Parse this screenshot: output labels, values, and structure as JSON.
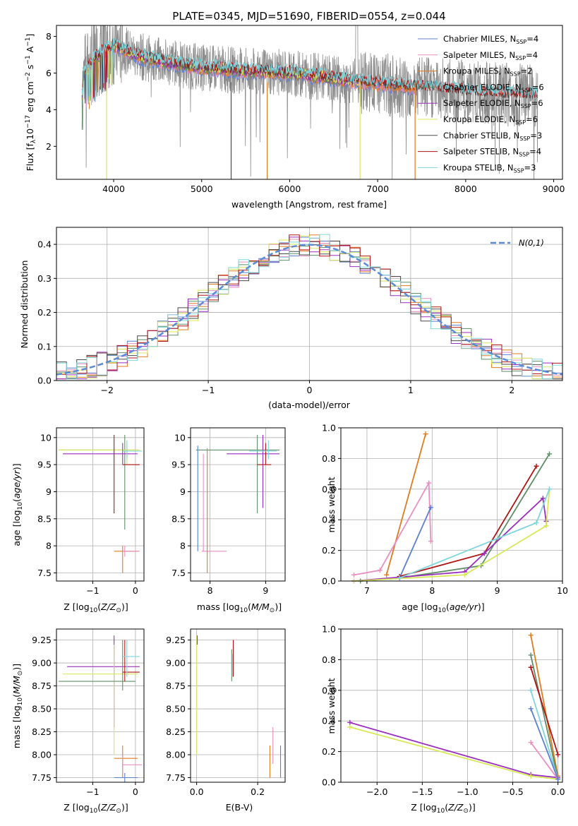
{
  "colors": {
    "chabrier_miles": "#5b7fd1",
    "salpeter_miles": "#e88fc0",
    "kroupa_miles": "#e07b20",
    "chabrier_elodie": "#5f8f68",
    "salpeter_elodie": "#9a2fbf",
    "kroupa_elodie": "#d8e85a",
    "chabrier_stelib": "#4a4a4a",
    "salpeter_stelib": "#b01414",
    "kroupa_stelib": "#7ed6dc",
    "gauss": "#5b8ad6",
    "observed": "#8c8c8c"
  },
  "chart_data": [
    {
      "type": "line",
      "title": "PLATE=0345, MJD=51690, FIBERID=0554, z=0.044",
      "xlabel": "wavelength [Angstrom, rest frame]",
      "ylabel": "Flux [fλ10⁻¹⁷ erg cm⁻² s⁻¹ A⁻¹]",
      "xlim": [
        3350,
        9100
      ],
      "ylim": [
        0.2,
        8.6
      ],
      "xticks": [
        4000,
        5000,
        6000,
        7000,
        8000,
        9000
      ],
      "yticks": [
        2,
        4,
        6,
        8
      ],
      "legend_position": "top-right",
      "series": [
        {
          "name": "Chabrier MILES, N_SSP=4",
          "key": "chabrier_miles"
        },
        {
          "name": "Salpeter MILES, N_SSP=4",
          "key": "salpeter_miles"
        },
        {
          "name": "Kroupa MILES, N_SSP=2",
          "key": "kroupa_miles"
        },
        {
          "name": "Chabrier ELODIE, N_SSP=6",
          "key": "chabrier_elodie"
        },
        {
          "name": "Salpeter ELODIE, N_SSP=6",
          "key": "salpeter_elodie"
        },
        {
          "name": "Kroupa ELODIE, N_SSP=6",
          "key": "kroupa_elodie"
        },
        {
          "name": "Chabrier STELIB, N_SSP=3",
          "key": "chabrier_stelib"
        },
        {
          "name": "Salpeter STELIB, N_SSP=4",
          "key": "salpeter_stelib"
        },
        {
          "name": "Kroupa STELIB, N_SSP=3",
          "key": "kroupa_stelib"
        }
      ],
      "continuum": {
        "x": [
          3650,
          3800,
          4000,
          4300,
          4600,
          5000,
          5500,
          6000,
          6500,
          7000,
          7500,
          8000,
          8500,
          8800
        ],
        "y": [
          5.9,
          6.9,
          7.5,
          6.9,
          6.6,
          6.3,
          6.1,
          6.0,
          5.7,
          5.4,
          5.2,
          5.0,
          4.8,
          4.8
        ]
      }
    },
    {
      "type": "line",
      "xlabel": "(data-model)/error",
      "ylabel": "Normed distribution",
      "xlim": [
        -2.5,
        2.5
      ],
      "ylim": [
        0,
        0.45
      ],
      "xticks": [
        -2,
        -1,
        0,
        1,
        2
      ],
      "yticks": [
        0.0,
        0.1,
        0.2,
        0.3,
        0.4
      ],
      "grid": true,
      "legend": "N(0,1)",
      "legend_position": "top-right",
      "bin_edges_from": -2.5,
      "bin_width": 0.1
    },
    {
      "type": "scatter",
      "xlabel": "Z [log10(Z/Z☉)]",
      "ylabel": "age  [log10(age/yr)]",
      "xlim": [
        -1.85,
        0.2
      ],
      "ylim": [
        7.35,
        10.18
      ],
      "xticks": [
        -1,
        0
      ],
      "yticks": [
        7.5,
        8.0,
        8.5,
        9.0,
        9.5,
        10.0
      ],
      "grid": true
    },
    {
      "type": "scatter",
      "xlabel": "mass [log10(M/M☉)]",
      "xlim": [
        7.65,
        9.35
      ],
      "ylim": [
        7.35,
        10.18
      ],
      "xticks": [
        8,
        9
      ],
      "yticks": [
        7.5,
        8.0,
        8.5,
        9.0,
        9.5,
        10.0
      ],
      "grid": true
    },
    {
      "type": "line",
      "xlabel": "age  [log10(age/yr)]",
      "ylabel": "mass weight",
      "xlim": [
        6.6,
        10.0
      ],
      "ylim": [
        0,
        1
      ],
      "xticks": [
        7,
        8,
        9,
        10
      ],
      "yticks": [
        0.0,
        0.2,
        0.4,
        0.6,
        0.8,
        1.0
      ],
      "grid": true,
      "series": [
        {
          "key": "kroupa_miles",
          "x": [
            7.3,
            7.9
          ],
          "y": [
            0.04,
            0.96
          ]
        },
        {
          "key": "salpeter_miles",
          "x": [
            6.8,
            7.2,
            7.95,
            7.98
          ],
          "y": [
            0.04,
            0.07,
            0.64,
            0.26
          ]
        },
        {
          "key": "chabrier_miles",
          "x": [
            7.5,
            7.98
          ],
          "y": [
            0.02,
            0.48
          ]
        },
        {
          "key": "chabrier_elodie",
          "x": [
            6.9,
            7.5,
            8.75,
            9.8
          ],
          "y": [
            0.0,
            0.02,
            0.1,
            0.83
          ]
        },
        {
          "key": "salpeter_stelib",
          "x": [
            7.5,
            8.8,
            9.6
          ],
          "y": [
            0.03,
            0.18,
            0.75
          ]
        },
        {
          "key": "salpeter_elodie",
          "x": [
            6.8,
            8.5,
            8.8,
            9.7,
            9.75
          ],
          "y": [
            0.0,
            0.06,
            0.18,
            0.54,
            0.39
          ]
        },
        {
          "key": "kroupa_elodie",
          "x": [
            6.8,
            8.5,
            9.75,
            9.8
          ],
          "y": [
            0.0,
            0.04,
            0.36,
            0.6
          ]
        },
        {
          "key": "kroupa_stelib",
          "x": [
            7.5,
            9.6,
            9.8
          ],
          "y": [
            0.02,
            0.38,
            0.6
          ]
        }
      ]
    },
    {
      "type": "scatter",
      "xlabel": "Z [log10(Z/Z☉)]",
      "ylabel": "mass [log10(M/M☉)]",
      "xlim": [
        -1.85,
        0.2
      ],
      "ylim": [
        7.7,
        9.37
      ],
      "xticks": [
        -1,
        0
      ],
      "yticks": [
        7.75,
        8.0,
        8.25,
        8.5,
        8.75,
        9.0,
        9.25
      ],
      "grid": true
    },
    {
      "type": "scatter",
      "xlabel": "E(B-V)",
      "xlim": [
        -0.02,
        0.29
      ],
      "ylim": [
        7.7,
        9.37
      ],
      "xticks": [
        0.0,
        0.2
      ],
      "yticks": [
        7.75,
        8.0,
        8.25,
        8.5,
        8.75,
        9.0,
        9.25
      ],
      "grid": true
    },
    {
      "type": "line",
      "xlabel": "Z [log10(Z/Z☉)]",
      "ylabel": "mass weight",
      "xlim": [
        -2.4,
        0.05
      ],
      "ylim": [
        0,
        1
      ],
      "xticks": [
        -2.0,
        -1.5,
        -1.0,
        -0.5,
        0.0
      ],
      "yticks": [
        0.0,
        0.2,
        0.4,
        0.6,
        0.8,
        1.0
      ],
      "grid": true,
      "series": [
        {
          "key": "salpeter_elodie",
          "x": [
            -2.3,
            -0.3,
            0.0
          ],
          "y": [
            0.39,
            0.05,
            0.03
          ]
        },
        {
          "key": "kroupa_elodie",
          "x": [
            -2.3,
            -0.3,
            0.0
          ],
          "y": [
            0.36,
            0.04,
            0.02
          ]
        },
        {
          "key": "kroupa_miles",
          "x": [
            -0.3,
            0.0
          ],
          "y": [
            0.96,
            0.04
          ]
        },
        {
          "key": "chabrier_elodie",
          "x": [
            -0.3,
            0.0
          ],
          "y": [
            0.83,
            0.02
          ]
        },
        {
          "key": "salpeter_stelib",
          "x": [
            -0.3,
            0.0
          ],
          "y": [
            0.75,
            0.18
          ]
        },
        {
          "key": "kroupa_stelib",
          "x": [
            -0.3,
            0.0
          ],
          "y": [
            0.6,
            0.02
          ]
        },
        {
          "key": "salpeter_miles",
          "x": [
            -0.3,
            0.0
          ],
          "y": [
            0.26,
            0.02
          ]
        },
        {
          "key": "chabrier_miles",
          "x": [
            -0.3,
            0.0
          ],
          "y": [
            0.48,
            0.02
          ]
        }
      ]
    }
  ],
  "texts": {
    "title": "PLATE=0345, MJD=51690, FIBERID=0554, z=0.044",
    "p1_xlabel": "wavelength [Angstrom, rest frame]",
    "p2_xlabel": "(data-model)/error",
    "p2_ylabel": "Normed distribution",
    "p2_legend": "N(0,1)"
  }
}
